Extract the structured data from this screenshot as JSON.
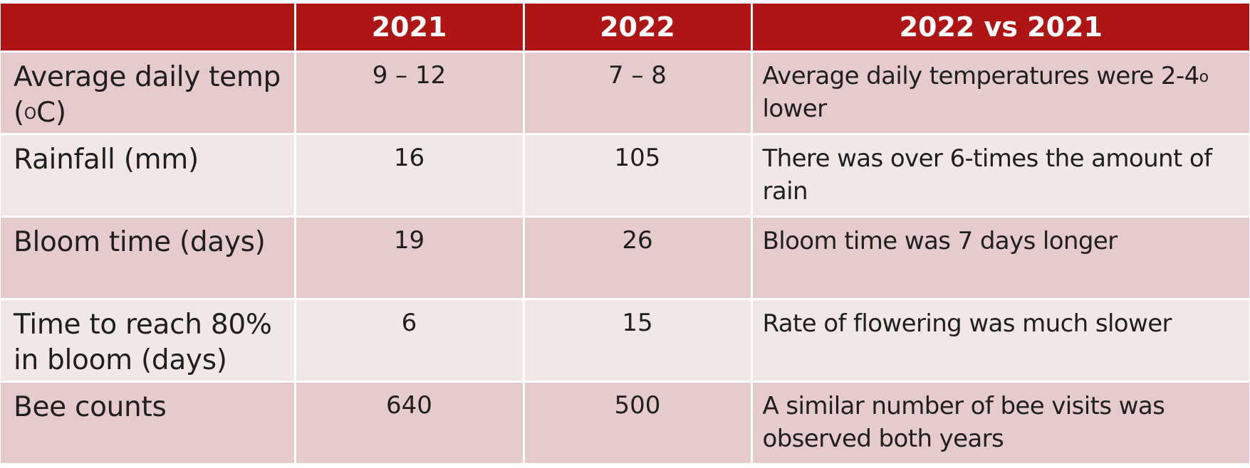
{
  "headers": {
    "blank": "",
    "year1": "2021",
    "year2": "2022",
    "comparison": "2022 vs 2021"
  },
  "rows": [
    {
      "label_a": "Average daily temp (",
      "label_sup": "O",
      "label_b": "C)",
      "v2021": "9 – 12",
      "v2022": "7 – 8",
      "note_a": "Average daily temperatures were 2-4",
      "note_sup": "o",
      "note_b": " lower"
    },
    {
      "label": "Rainfall (mm)",
      "v2021": "16",
      "v2022": "105",
      "note": "There was over 6-times the amount of rain"
    },
    {
      "label": "Bloom time (days)",
      "v2021": "19",
      "v2022": "26",
      "note": "Bloom time was 7 days longer"
    },
    {
      "label": "Time to reach 80% in bloom (days)",
      "v2021": "6",
      "v2022": "15",
      "note": "Rate of flowering was much slower"
    },
    {
      "label": "Bee counts",
      "v2021": "640",
      "v2022": "500",
      "note": "A similar number of bee visits was observed both years"
    }
  ],
  "colors": {
    "header_bg": "#b01515",
    "row_dark": "#e5cbcb",
    "row_light": "#f2e7e7"
  }
}
